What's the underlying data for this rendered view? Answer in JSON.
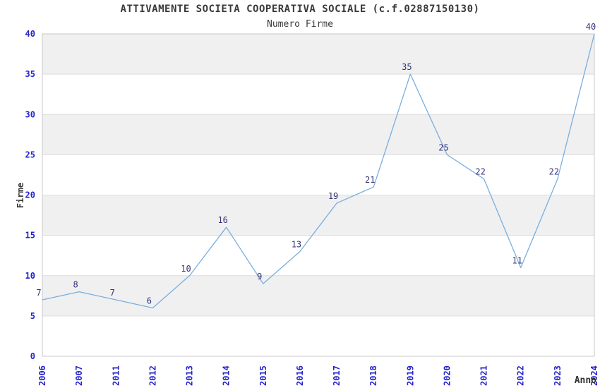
{
  "header": {
    "title": "ATTIVAMENTE SOCIETA COOPERATIVA SOCIALE (c.f.02887150130)",
    "subtitle": "Numero Firme"
  },
  "chart_data": {
    "type": "line",
    "title": "ATTIVAMENTE SOCIETA COOPERATIVA SOCIALE (c.f.02887150130)",
    "subtitle": "Numero Firme",
    "xlabel": "Anno",
    "ylabel": "Firme",
    "categories": [
      "2006",
      "2007",
      "2011",
      "2012",
      "2013",
      "2014",
      "2015",
      "2016",
      "2017",
      "2018",
      "2019",
      "2020",
      "2021",
      "2022",
      "2023",
      "2024"
    ],
    "values": [
      7,
      8,
      7,
      6,
      10,
      16,
      9,
      13,
      19,
      21,
      35,
      25,
      22,
      11,
      22,
      40
    ],
    "ylim": [
      0,
      40
    ],
    "ytick_step": 5,
    "yticks": [
      0,
      5,
      10,
      15,
      20,
      25,
      30,
      35,
      40
    ],
    "grid": "alternating-horizontal-bands",
    "legend": "none",
    "colors": {
      "line": "#7aaede",
      "axis_tick_label": "#2323cd",
      "data_label": "#333377",
      "band_fill": "#f0f0f0",
      "plot_border": "#c9c9c9",
      "gridline": "#dcdcdc",
      "text": "#3a3a3a"
    }
  }
}
